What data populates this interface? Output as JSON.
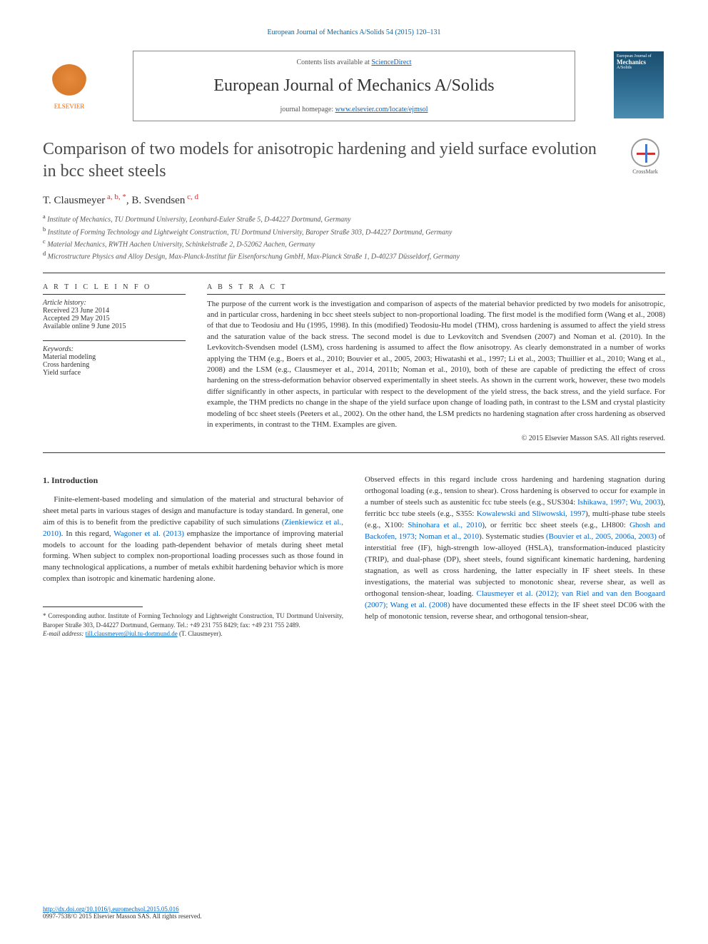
{
  "header": {
    "reference": "European Journal of Mechanics A/Solids 54 (2015) 120–131",
    "contentsAvailable": "Contents lists available at ",
    "contentsLink": "ScienceDirect",
    "journalName": "European Journal of Mechanics A/Solids",
    "homepageLabel": "journal homepage: ",
    "homepageUrl": "www.elsevier.com/locate/ejmsol",
    "elsevierLabel": "ELSEVIER",
    "coverLineTop": "European Journal of",
    "coverLineMain": "Mechanics",
    "coverLineSub": "A/Solids"
  },
  "article": {
    "title": "Comparison of two models for anisotropic hardening and yield surface evolution in bcc sheet steels",
    "crossmark": "CrossMark",
    "authors": "T. Clausmeyer",
    "authorAff1": " a, b, *",
    "authorsSep": ", B. Svendsen",
    "authorAff2": " c, d",
    "affiliations": {
      "a": "Institute of Mechanics, TU Dortmund University, Leonhard-Euler Straße 5, D-44227 Dortmund, Germany",
      "b": "Institute of Forming Technology and Lightweight Construction, TU Dortmund University, Baroper Straße 303, D-44227 Dortmund, Germany",
      "c": "Material Mechanics, RWTH Aachen University, Schinkelstraße 2, D-52062 Aachen, Germany",
      "d": "Microstructure Physics and Alloy Design, Max-Planck-Institut für Eisenforschung GmbH, Max-Planck Straße 1, D-40237 Düsseldorf, Germany"
    }
  },
  "info": {
    "headingInfo": "A R T I C L E   I N F O",
    "historyLabel": "Article history:",
    "received": "Received 23 June 2014",
    "accepted": "Accepted 29 May 2015",
    "online": "Available online 9 June 2015",
    "keywordsLabel": "Keywords:",
    "kw1": "Material modeling",
    "kw2": "Cross hardening",
    "kw3": "Yield surface"
  },
  "abstract": {
    "heading": "A B S T R A C T",
    "text": "The purpose of the current work is the investigation and comparison of aspects of the material behavior predicted by two models for anisotropic, and in particular cross, hardening in bcc sheet steels subject to non-proportional loading. The first model is the modified form (Wang et al., 2008) of that due to Teodosiu and Hu (1995, 1998). In this (modified) Teodosiu-Hu model (THM), cross hardening is assumed to affect the yield stress and the saturation value of the back stress. The second model is due to Levkovitch and Svendsen (2007) and Noman et al. (2010). In the Levkovitch-Svendsen model (LSM), cross hardening is assumed to affect the flow anisotropy. As clearly demonstrated in a number of works applying the THM (e.g., Boers et al., 2010; Bouvier et al., 2005, 2003; Hiwatashi et al., 1997; Li et al., 2003; Thuillier et al., 2010; Wang et al., 2008) and the LSM (e.g., Clausmeyer et al., 2014, 2011b; Noman et al., 2010), both of these are capable of predicting the effect of cross hardening on the stress-deformation behavior observed experimentally in sheet steels. As shown in the current work, however, these two models differ significantly in other aspects, in particular with respect to the development of the yield stress, the back stress, and the yield surface. For example, the THM predicts no change in the shape of the yield surface upon change of loading path, in contrast to the LSM and crystal plasticity modeling of bcc sheet steels (Peeters et al., 2002). On the other hand, the LSM predicts no hardening stagnation after cross hardening as observed in experiments, in contrast to the THM. Examples are given.",
    "copyright": "© 2015 Elsevier Masson SAS. All rights reserved."
  },
  "body": {
    "sectionHeading": "1. Introduction",
    "leftPara": "Finite-element-based modeling and simulation of the material and structural behavior of sheet metal parts in various stages of design and manufacture is today standard. In general, one aim of this is to benefit from the predictive capability of such simulations ",
    "leftCite1": "(Zienkiewicz et al., 2010)",
    "leftMid1": ". In this regard, ",
    "leftCite2": "Wagoner et al. (2013)",
    "leftMid2": " emphasize the importance of improving material models to account for the loading path-dependent behavior of metals during sheet metal forming. When subject to complex non-proportional loading processes such as those found in many technological applications, a number of metals exhibit hardening behavior which is more complex than isotropic and kinematic hardening alone.",
    "rightPre": "Observed effects in this regard include cross hardening and hardening stagnation during orthogonal loading (e.g., tension to shear). Cross hardening is observed to occur for example in a number of steels such as austenitic fcc tube steels (e.g., SUS304: ",
    "rightCite1": "Ishikawa, 1997; Wu, 2003",
    "rightMid1": "), ferritic bcc tube steels (e.g., S355: ",
    "rightCite2": "Kowalewski and Sliwowski, 1997",
    "rightMid2": "), multi-phase tube steels (e.g., X100: ",
    "rightCite3": "Shinohara et al., 2010",
    "rightMid3": "), or ferritic bcc sheet steels (e.g., LH800: ",
    "rightCite4": "Ghosh and Backofen, 1973; Noman et al., 2010",
    "rightMid4": "). Systematic studies ",
    "rightCite5": "(Bouvier et al., 2005, 2006a, 2003)",
    "rightMid5": " of interstitial free (IF), high-strength low-alloyed (HSLA), transformation-induced plasticity (TRIP), and dual-phase (DP), sheet steels, found significant kinematic hardening, hardening stagnation, as well as cross hardening, the latter especially in IF sheet steels. In these investigations, the material was subjected to monotonic shear, reverse shear, as well as orthogonal tension-shear, loading. ",
    "rightCite6": "Clausmeyer et al. (2012); van Riel and van den Boogaard (2007); Wang et al. (2008)",
    "rightMid6": " have documented these effects in the IF sheet steel DC06 with the help of monotonic tension, reverse shear, and orthogonal tension-shear,"
  },
  "footnotes": {
    "corresponding": "* Corresponding author. Institute of Forming Technology and Lightweight Construction, TU Dortmund University, Baroper Straße 303, D-44227 Dortmund, Germany. Tel.: +49 231 755 8429; fax: +49 231 755 2489.",
    "emailLabel": "E-mail address: ",
    "email": "till.clausmeyer@iul.tu-dortmund.de",
    "emailSuffix": " (T. Clausmeyer)."
  },
  "bottom": {
    "doi": "http://dx.doi.org/10.1016/j.euromechsol.2015.05.016",
    "issn": "0997-7538/© 2015 Elsevier Masson SAS. All rights reserved."
  },
  "colors": {
    "link": "#0066cc",
    "affMark": "#cc3333",
    "text": "#333333",
    "elsevierOrange": "#ff6600",
    "coverBg": "#1a4d6d"
  }
}
